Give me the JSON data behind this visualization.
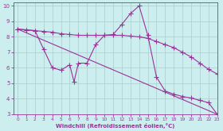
{
  "line1_x": [
    0,
    1,
    2,
    3,
    4,
    5,
    6,
    7,
    8,
    9,
    10,
    11,
    12,
    13,
    14,
    15,
    16,
    17,
    18,
    19,
    20,
    21,
    22,
    23
  ],
  "line1_y": [
    8.5,
    8.45,
    8.4,
    8.35,
    8.3,
    8.2,
    8.15,
    8.1,
    8.1,
    8.1,
    8.1,
    8.1,
    8.1,
    8.05,
    8.0,
    7.9,
    7.7,
    7.5,
    7.3,
    7.0,
    6.7,
    6.3,
    5.9,
    5.6
  ],
  "line2_x": [
    0,
    1,
    2,
    3,
    4,
    5,
    6,
    6.5,
    7,
    8,
    9,
    10,
    11,
    12,
    13,
    14,
    15,
    16,
    17,
    18,
    19,
    20,
    21,
    22,
    23
  ],
  "line2_y": [
    8.5,
    8.45,
    8.4,
    7.2,
    6.0,
    5.85,
    6.2,
    5.1,
    6.3,
    6.3,
    7.5,
    8.1,
    8.15,
    8.8,
    9.5,
    10.0,
    8.1,
    5.4,
    4.5,
    4.3,
    4.15,
    4.05,
    3.9,
    3.75,
    3.0
  ],
  "line3_x": [
    0,
    23
  ],
  "line3_y": [
    8.5,
    3.0
  ],
  "color": "#993399",
  "bg_color": "#cceeee",
  "grid_color": "#aacccc",
  "xlabel": "Windchill (Refroidissement éolien,°C)",
  "xlim": [
    -0.5,
    23
  ],
  "ylim": [
    3,
    10.2
  ],
  "yticks": [
    3,
    4,
    5,
    6,
    7,
    8,
    9,
    10
  ],
  "xticks": [
    0,
    1,
    2,
    3,
    4,
    5,
    6,
    7,
    8,
    9,
    10,
    11,
    12,
    13,
    14,
    15,
    16,
    17,
    18,
    19,
    20,
    21,
    22,
    23
  ],
  "marker": "+",
  "markersize": 4,
  "linewidth": 0.8
}
